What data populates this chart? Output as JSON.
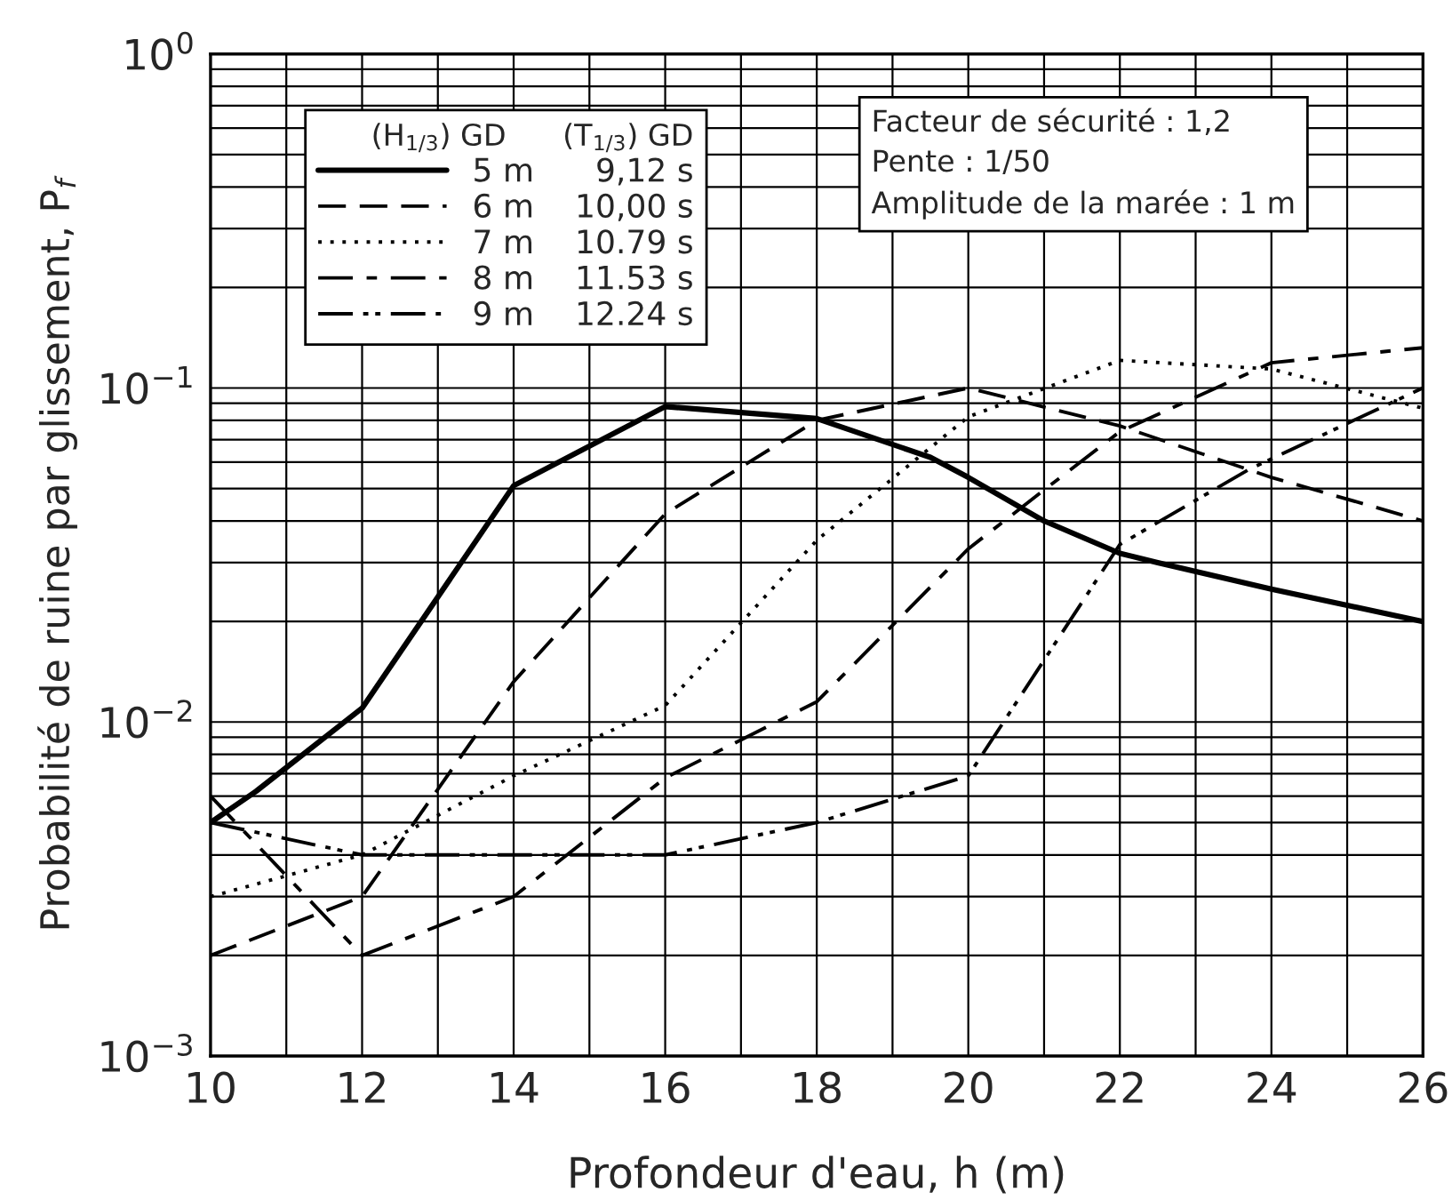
{
  "chart_data": {
    "type": "line",
    "xlabel": "Profondeur d'eau, h (m)",
    "ylabel": "Probabilité de ruine par glissement, P$_{f}$",
    "legend_title": "(H$_{1/3}$) GD      (T$_{1/3}$) GD",
    "legend": "top left",
    "log": "y",
    "grid": true,
    "xlim": [
      10,
      26
    ],
    "xticks": [
      10,
      {
        "value": 11,
        "label": null
      },
      12,
      {
        "value": 13,
        "label": null
      },
      14,
      {
        "value": 15,
        "label": null
      },
      16,
      {
        "value": 17,
        "label": null
      },
      18,
      {
        "value": 19,
        "label": null
      },
      20,
      {
        "value": 21,
        "label": null
      },
      22,
      {
        "value": 23,
        "label": null
      },
      24,
      {
        "value": 25,
        "label": null
      },
      26
    ],
    "ylim": [
      0.001,
      1
    ],
    "yticks": [
      {
        "value": 0.001,
        "label": "10$^{−3}$"
      },
      {
        "value": 0.002,
        "label": null
      },
      {
        "value": 0.003,
        "label": null
      },
      {
        "value": 0.004,
        "label": null
      },
      {
        "value": 0.005,
        "label": null
      },
      {
        "value": 0.006,
        "label": null
      },
      {
        "value": 0.007,
        "label": null
      },
      {
        "value": 0.008,
        "label": null
      },
      {
        "value": 0.009,
        "label": null
      },
      {
        "value": 0.01,
        "label": "10$^{−2}$"
      },
      {
        "value": 0.02,
        "label": null
      },
      {
        "value": 0.03,
        "label": null
      },
      {
        "value": 0.04,
        "label": null
      },
      {
        "value": 0.05,
        "label": null
      },
      {
        "value": 0.06,
        "label": null
      },
      {
        "value": 0.07,
        "label": null
      },
      {
        "value": 0.08,
        "label": null
      },
      {
        "value": 0.09,
        "label": null
      },
      {
        "value": 0.1,
        "label": "10$^{−1}$"
      },
      {
        "value": 0.2,
        "label": null
      },
      {
        "value": 0.3,
        "label": null
      },
      {
        "value": 0.4,
        "label": null
      },
      {
        "value": 0.5,
        "label": null
      },
      {
        "value": 0.6,
        "label": null
      },
      {
        "value": 0.7,
        "label": null
      },
      {
        "value": 0.8,
        "label": null
      },
      {
        "value": 0.9,
        "label": null
      },
      {
        "value": 1,
        "label": "10$^{0}$"
      }
    ],
    "annotations": [
      "Facteur de sécurité : 1,2\nPente : 1/50\nAmplitude de la marée : 1 m"
    ],
    "series": [
      {
        "name": "5 m      9,12 s",
        "color": "#000000",
        "line_style": "solid",
        "x": [
          10,
          10.6,
          12,
          14,
          16,
          18,
          19.5,
          20,
          21,
          22,
          22.5,
          24,
          26
        ],
        "values": [
          0.005,
          0.0062,
          0.011,
          0.051,
          0.088,
          0.081,
          0.062,
          0.054,
          0.04,
          0.032,
          0.03,
          0.025,
          0.02
        ]
      },
      {
        "name": "6 m    10,00 s",
        "color": "#000000",
        "line_style": "dashed",
        "x": [
          10,
          12,
          14,
          16,
          18,
          20,
          22,
          24,
          26
        ],
        "values": [
          0.002,
          0.003,
          0.0132,
          0.042,
          0.08,
          0.1,
          0.077,
          0.054,
          0.04
        ]
      },
      {
        "name": "7 m    10.79 s",
        "color": "#000000",
        "line_style": "dotted",
        "x": [
          10,
          12,
          14,
          16,
          18,
          20,
          22,
          24,
          26
        ],
        "values": [
          0.003,
          0.004,
          0.0069,
          0.0112,
          0.035,
          0.082,
          0.121,
          0.114,
          0.087
        ]
      },
      {
        "name": "8 m    11.53 s",
        "color": "#000000",
        "line_style": "dashdot",
        "x": [
          10,
          12,
          14,
          16,
          18,
          20,
          21,
          22,
          24,
          26
        ],
        "values": [
          0.006,
          0.002,
          0.003,
          0.0068,
          0.0115,
          0.033,
          0.0495,
          0.074,
          0.119,
          0.132
        ]
      },
      {
        "name": "9 m    12.24 s",
        "color": "#000000",
        "line_style": "dashdotdot",
        "x": [
          10,
          12,
          14,
          16,
          18,
          20,
          22,
          23.7,
          26
        ],
        "values": [
          0.005,
          0.004,
          0.004,
          0.004,
          0.005,
          0.0069,
          0.034,
          0.057,
          0.1
        ]
      }
    ]
  }
}
